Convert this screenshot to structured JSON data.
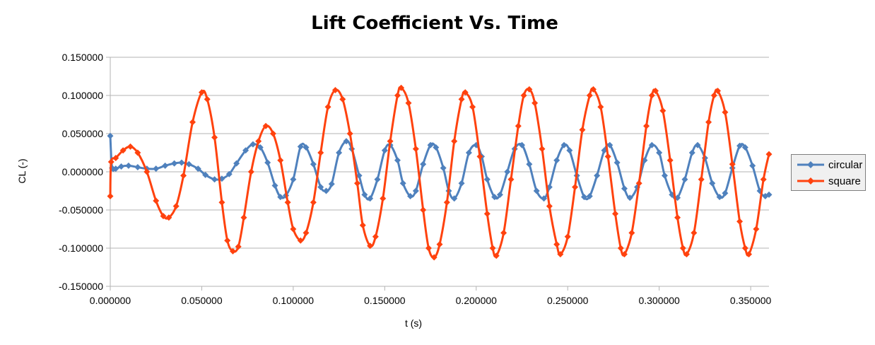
{
  "chart_data": {
    "type": "line",
    "title": "Lift Coefficient Vs. Time",
    "xlabel": "t (s)",
    "ylabel": "CL (-)",
    "xlim": [
      0,
      0.36
    ],
    "ylim": [
      -0.15,
      0.15
    ],
    "x_ticks": [
      "0.000000",
      "0.050000",
      "0.100000",
      "0.150000",
      "0.200000",
      "0.250000",
      "0.300000",
      "0.350000"
    ],
    "y_ticks": [
      "0.150000",
      "0.100000",
      "0.050000",
      "0.000000",
      "-0.050000",
      "-0.100000",
      "-0.150000"
    ],
    "grid": "horizontal",
    "legend_position": "right",
    "series": [
      {
        "name": "circular",
        "color": "#4f81bd",
        "marker": "diamond",
        "points": [
          [
            0.0,
            0.047
          ],
          [
            0.001,
            0.005
          ],
          [
            0.003,
            0.004
          ],
          [
            0.006,
            0.007
          ],
          [
            0.01,
            0.008
          ],
          [
            0.015,
            0.006
          ],
          [
            0.02,
            0.004
          ],
          [
            0.025,
            0.004
          ],
          [
            0.03,
            0.008
          ],
          [
            0.035,
            0.011
          ],
          [
            0.039,
            0.012
          ],
          [
            0.043,
            0.01
          ],
          [
            0.048,
            0.004
          ],
          [
            0.052,
            -0.004
          ],
          [
            0.057,
            -0.01
          ],
          [
            0.061,
            -0.009
          ],
          [
            0.065,
            -0.003
          ],
          [
            0.069,
            0.011
          ],
          [
            0.074,
            0.028
          ],
          [
            0.078,
            0.036
          ],
          [
            0.082,
            0.032
          ],
          [
            0.086,
            0.012
          ],
          [
            0.09,
            -0.018
          ],
          [
            0.093,
            -0.033
          ],
          [
            0.096,
            -0.031
          ],
          [
            0.1,
            -0.01
          ],
          [
            0.104,
            0.033
          ],
          [
            0.107,
            0.032
          ],
          [
            0.111,
            0.01
          ],
          [
            0.115,
            -0.02
          ],
          [
            0.118,
            -0.025
          ],
          [
            0.121,
            -0.016
          ],
          [
            0.125,
            0.025
          ],
          [
            0.129,
            0.04
          ],
          [
            0.132,
            0.03
          ],
          [
            0.136,
            -0.005
          ],
          [
            0.139,
            -0.03
          ],
          [
            0.142,
            -0.035
          ],
          [
            0.146,
            -0.01
          ],
          [
            0.15,
            0.028
          ],
          [
            0.153,
            0.035
          ],
          [
            0.157,
            0.015
          ],
          [
            0.16,
            -0.015
          ],
          [
            0.164,
            -0.032
          ],
          [
            0.167,
            -0.025
          ],
          [
            0.171,
            0.01
          ],
          [
            0.175,
            0.035
          ],
          [
            0.178,
            0.032
          ],
          [
            0.182,
            0.005
          ],
          [
            0.185,
            -0.025
          ],
          [
            0.188,
            -0.035
          ],
          [
            0.192,
            -0.015
          ],
          [
            0.196,
            0.025
          ],
          [
            0.2,
            0.035
          ],
          [
            0.203,
            0.02
          ],
          [
            0.206,
            -0.01
          ],
          [
            0.21,
            -0.033
          ],
          [
            0.213,
            -0.03
          ],
          [
            0.217,
            0.0
          ],
          [
            0.221,
            0.03
          ],
          [
            0.225,
            0.035
          ],
          [
            0.229,
            0.01
          ],
          [
            0.233,
            -0.025
          ],
          [
            0.237,
            -0.035
          ],
          [
            0.24,
            -0.02
          ],
          [
            0.244,
            0.015
          ],
          [
            0.248,
            0.035
          ],
          [
            0.251,
            0.028
          ],
          [
            0.255,
            -0.005
          ],
          [
            0.259,
            -0.033
          ],
          [
            0.262,
            -0.032
          ],
          [
            0.266,
            -0.005
          ],
          [
            0.27,
            0.028
          ],
          [
            0.273,
            0.035
          ],
          [
            0.277,
            0.012
          ],
          [
            0.281,
            -0.022
          ],
          [
            0.284,
            -0.034
          ],
          [
            0.288,
            -0.02
          ],
          [
            0.292,
            0.015
          ],
          [
            0.296,
            0.035
          ],
          [
            0.3,
            0.025
          ],
          [
            0.303,
            -0.005
          ],
          [
            0.307,
            -0.03
          ],
          [
            0.31,
            -0.034
          ],
          [
            0.314,
            -0.01
          ],
          [
            0.318,
            0.025
          ],
          [
            0.321,
            0.035
          ],
          [
            0.325,
            0.018
          ],
          [
            0.329,
            -0.015
          ],
          [
            0.333,
            -0.033
          ],
          [
            0.336,
            -0.028
          ],
          [
            0.34,
            0.005
          ],
          [
            0.344,
            0.034
          ],
          [
            0.347,
            0.032
          ],
          [
            0.351,
            0.008
          ],
          [
            0.355,
            -0.025
          ],
          [
            0.358,
            -0.032
          ],
          [
            0.36,
            -0.03
          ]
        ]
      },
      {
        "name": "square",
        "color": "#ff420e",
        "marker": "diamond",
        "points": [
          [
            0.0,
            -0.032
          ],
          [
            0.0005,
            0.013
          ],
          [
            0.003,
            0.018
          ],
          [
            0.007,
            0.028
          ],
          [
            0.011,
            0.033
          ],
          [
            0.015,
            0.025
          ],
          [
            0.02,
            0.0
          ],
          [
            0.025,
            -0.038
          ],
          [
            0.029,
            -0.058
          ],
          [
            0.032,
            -0.06
          ],
          [
            0.036,
            -0.045
          ],
          [
            0.04,
            -0.005
          ],
          [
            0.045,
            0.065
          ],
          [
            0.05,
            0.104
          ],
          [
            0.053,
            0.095
          ],
          [
            0.057,
            0.045
          ],
          [
            0.061,
            -0.04
          ],
          [
            0.064,
            -0.09
          ],
          [
            0.067,
            -0.104
          ],
          [
            0.07,
            -0.098
          ],
          [
            0.073,
            -0.06
          ],
          [
            0.077,
            0.0
          ],
          [
            0.081,
            0.04
          ],
          [
            0.085,
            0.06
          ],
          [
            0.089,
            0.05
          ],
          [
            0.093,
            0.015
          ],
          [
            0.097,
            -0.04
          ],
          [
            0.1,
            -0.075
          ],
          [
            0.104,
            -0.09
          ],
          [
            0.107,
            -0.08
          ],
          [
            0.111,
            -0.04
          ],
          [
            0.115,
            0.025
          ],
          [
            0.119,
            0.085
          ],
          [
            0.123,
            0.107
          ],
          [
            0.127,
            0.095
          ],
          [
            0.131,
            0.05
          ],
          [
            0.135,
            -0.015
          ],
          [
            0.138,
            -0.07
          ],
          [
            0.142,
            -0.097
          ],
          [
            0.145,
            -0.085
          ],
          [
            0.149,
            -0.035
          ],
          [
            0.153,
            0.04
          ],
          [
            0.157,
            0.1
          ],
          [
            0.159,
            0.11
          ],
          [
            0.163,
            0.09
          ],
          [
            0.167,
            0.03
          ],
          [
            0.171,
            -0.05
          ],
          [
            0.174,
            -0.1
          ],
          [
            0.177,
            -0.112
          ],
          [
            0.18,
            -0.095
          ],
          [
            0.184,
            -0.04
          ],
          [
            0.188,
            0.04
          ],
          [
            0.192,
            0.095
          ],
          [
            0.194,
            0.104
          ],
          [
            0.198,
            0.085
          ],
          [
            0.202,
            0.02
          ],
          [
            0.206,
            -0.055
          ],
          [
            0.209,
            -0.1
          ],
          [
            0.211,
            -0.11
          ],
          [
            0.215,
            -0.08
          ],
          [
            0.219,
            -0.01
          ],
          [
            0.223,
            0.06
          ],
          [
            0.226,
            0.1
          ],
          [
            0.229,
            0.108
          ],
          [
            0.232,
            0.09
          ],
          [
            0.236,
            0.03
          ],
          [
            0.24,
            -0.045
          ],
          [
            0.244,
            -0.095
          ],
          [
            0.246,
            -0.108
          ],
          [
            0.25,
            -0.085
          ],
          [
            0.254,
            -0.02
          ],
          [
            0.258,
            0.055
          ],
          [
            0.262,
            0.1
          ],
          [
            0.264,
            0.108
          ],
          [
            0.268,
            0.085
          ],
          [
            0.272,
            0.02
          ],
          [
            0.276,
            -0.055
          ],
          [
            0.279,
            -0.1
          ],
          [
            0.281,
            -0.108
          ],
          [
            0.285,
            -0.08
          ],
          [
            0.289,
            -0.015
          ],
          [
            0.293,
            0.06
          ],
          [
            0.296,
            0.1
          ],
          [
            0.298,
            0.106
          ],
          [
            0.302,
            0.08
          ],
          [
            0.306,
            0.015
          ],
          [
            0.31,
            -0.06
          ],
          [
            0.313,
            -0.1
          ],
          [
            0.315,
            -0.108
          ],
          [
            0.319,
            -0.08
          ],
          [
            0.323,
            -0.01
          ],
          [
            0.327,
            0.065
          ],
          [
            0.33,
            0.1
          ],
          [
            0.332,
            0.106
          ],
          [
            0.336,
            0.078
          ],
          [
            0.34,
            0.01
          ],
          [
            0.344,
            -0.065
          ],
          [
            0.347,
            -0.1
          ],
          [
            0.349,
            -0.108
          ],
          [
            0.353,
            -0.075
          ],
          [
            0.357,
            -0.01
          ],
          [
            0.36,
            0.023
          ]
        ]
      }
    ]
  }
}
